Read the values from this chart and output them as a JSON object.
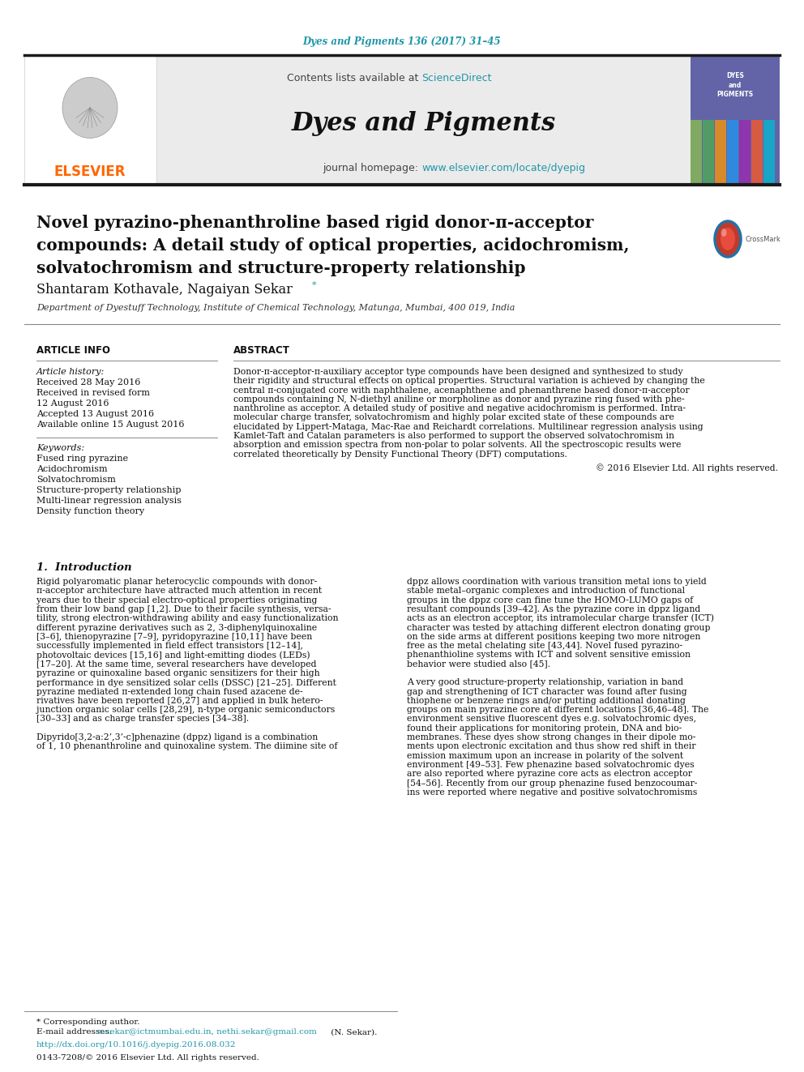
{
  "journal_ref": "Dyes and Pigments 136 (2017) 31–45",
  "journal_name": "Dyes and Pigments",
  "contents_line": "Contents lists available at ScienceDirect",
  "homepage_line": "journal homepage: www.elsevier.com/locate/dyepig",
  "title_line1": "Novel pyrazino-phenanthroline based rigid donor-π-acceptor",
  "title_line2": "compounds: A detail study of optical properties, acidochromism,",
  "title_line3": "solvatochromism and structure-property relationship",
  "authors": "Shantaram Kothavale, Nagaiyan Sekar",
  "affiliation": "Department of Dyestuff Technology, Institute of Chemical Technology, Matunga, Mumbai, 400 019, India",
  "article_info_title": "ARTICLE INFO",
  "abstract_title": "ABSTRACT",
  "article_history_label": "Article history:",
  "received": "Received 28 May 2016",
  "revised": "Received in revised form",
  "revised_date": "12 August 2016",
  "accepted": "Accepted 13 August 2016",
  "available": "Available online 15 August 2016",
  "keywords_label": "Keywords:",
  "keywords": [
    "Fused ring pyrazine",
    "Acidochromism",
    "Solvatochromism",
    "Structure-property relationship",
    "Multi-linear regression analysis",
    "Density function theory"
  ],
  "abstract_lines": [
    "Donor-π-acceptor-π-auxiliary acceptor type compounds have been designed and synthesized to study",
    "their rigidity and structural effects on optical properties. Structural variation is achieved by changing the",
    "central π-conjugated core with naphthalene, acenaphthene and phenanthrene based donor-π-acceptor",
    "compounds containing N, N-diethyl aniline or morpholine as donor and pyrazine ring fused with phe-",
    "nanthroline as acceptor. A detailed study of positive and negative acidochromism is performed. Intra-",
    "molecular charge transfer, solvatochromism and highly polar excited state of these compounds are",
    "elucidated by Lippert-Mataga, Mac-Rae and Reichardt correlations. Multilinear regression analysis using",
    "Kamlet-Taft and Catalan parameters is also performed to support the observed solvatochromism in",
    "absorption and emission spectra from non-polar to polar solvents. All the spectroscopic results were",
    "correlated theoretically by Density Functional Theory (DFT) computations."
  ],
  "copyright": "© 2016 Elsevier Ltd. All rights reserved.",
  "intro_title": "1.  Introduction",
  "col1_lines": [
    "Rigid polyaromatic planar heterocyclic compounds with donor-",
    "π-acceptor architecture have attracted much attention in recent",
    "years due to their special electro-optical properties originating",
    "from their low band gap [1,2]. Due to their facile synthesis, versa-",
    "tility, strong electron-withdrawing ability and easy functionalization",
    "different pyrazine derivatives such as 2, 3-diphenylquinoxaline",
    "[3–6], thienopyrazine [7–9], pyridopyrazine [10,11] have been",
    "successfully implemented in field effect transistors [12–14],",
    "photovoltaic devices [15,16] and light-emitting diodes (LEDs)",
    "[17–20]. At the same time, several researchers have developed",
    "pyrazine or quinoxaline based organic sensitizers for their high",
    "performance in dye sensitized solar cells (DSSC) [21–25]. Different",
    "pyrazine mediated π-extended long chain fused azacene de-",
    "rivatives have been reported [26,27] and applied in bulk hetero-",
    "junction organic solar cells [28,29], n-type organic semiconductors",
    "[30–33] and as charge transfer species [34–38].",
    "",
    "Dipyrido[3,2-a:2’,3’-c]phenazine (dppz) ligand is a combination",
    "of 1, 10 phenanthroline and quinoxaline system. The diimine site of"
  ],
  "col2_lines": [
    "dppz allows coordination with various transition metal ions to yield",
    "stable metal–organic complexes and introduction of functional",
    "groups in the dppz core can fine tune the HOMO-LUMO gaps of",
    "resultant compounds [39–42]. As the pyrazine core in dppz ligand",
    "acts as an electron acceptor, its intramolecular charge transfer (ICT)",
    "character was tested by attaching different electron donating group",
    "on the side arms at different positions keeping two more nitrogen",
    "free as the metal chelating site [43,44]. Novel fused pyrazino-",
    "phenanthioline systems with ICT and solvent sensitive emission",
    "behavior were studied also [45].",
    "",
    "A very good structure-property relationship, variation in band",
    "gap and strengthening of ICT character was found after fusing",
    "thiophene or benzene rings and/or putting additional donating",
    "groups on main pyrazine core at different locations [36,46–48]. The",
    "environment sensitive fluorescent dyes e.g. solvatochromic dyes,",
    "found their applications for monitoring protein, DNA and bio-",
    "membranes. These dyes show strong changes in their dipole mo-",
    "ments upon electronic excitation and thus show red shift in their",
    "emission maximum upon an increase in polarity of the solvent",
    "environment [49–53]. Few phenazine based solvatochromic dyes",
    "are also reported where pyrazine core acts as electron acceptor",
    "[54–56]. Recently from our group phenazine fused benzocoumar-",
    "ins were reported where negative and positive solvatochromisms"
  ],
  "corresponding_author": "* Corresponding author.",
  "email_label": "E-mail addresses: ",
  "email_link": "n.sekar@ictmumbai.edu.in, nethi.sekar@gmail.com",
  "email_suffix": " (N. Sekar).",
  "doi_line": "http://dx.doi.org/10.1016/j.dyepig.2016.08.032",
  "issn_line": "0143-7208/© 2016 Elsevier Ltd. All rights reserved.",
  "bg_color": "#ffffff",
  "link_color": "#2196A8",
  "elsevier_color": "#FF6600",
  "header_bg": "#e8e8e8",
  "black_bar_color": "#1a1a1a",
  "text_color": "#000000"
}
